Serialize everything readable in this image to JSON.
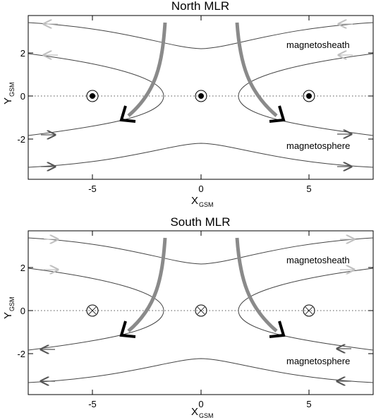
{
  "panels": [
    {
      "id": "north",
      "title": "North MLR",
      "symbol": "out-of-page",
      "upper_region_label": "magnetosheath",
      "lower_region_label": "magnetosphere",
      "x_ticks": [
        "-5",
        "0",
        "5"
      ],
      "y_ticks": [
        "2",
        "0",
        "-2"
      ],
      "xlabel_main": "X",
      "xlabel_sub": "GSM",
      "ylabel_main": "Y",
      "ylabel_sub": "GSM",
      "upper_line_direction": "-x",
      "lower_line_direction": "+x"
    },
    {
      "id": "south",
      "title": "South MLR",
      "symbol": "into-page",
      "upper_region_label": "magnetosheath",
      "lower_region_label": "magnetosphere",
      "x_ticks": [
        "-5",
        "0",
        "5"
      ],
      "y_ticks": [
        "2",
        "0",
        "-2"
      ],
      "xlabel_main": "X",
      "xlabel_sub": "GSM",
      "ylabel_main": "Y",
      "ylabel_sub": "GSM",
      "upper_line_direction": "+x",
      "lower_line_direction": "-x"
    }
  ],
  "colors": {
    "frame": "#000000",
    "field_line": "#444444",
    "light_arrow": "#c0c0c0",
    "dark_arrow": "#555555",
    "flow_arrow_shaft": "#8a8a8a",
    "flow_arrow_head": "#000000"
  }
}
